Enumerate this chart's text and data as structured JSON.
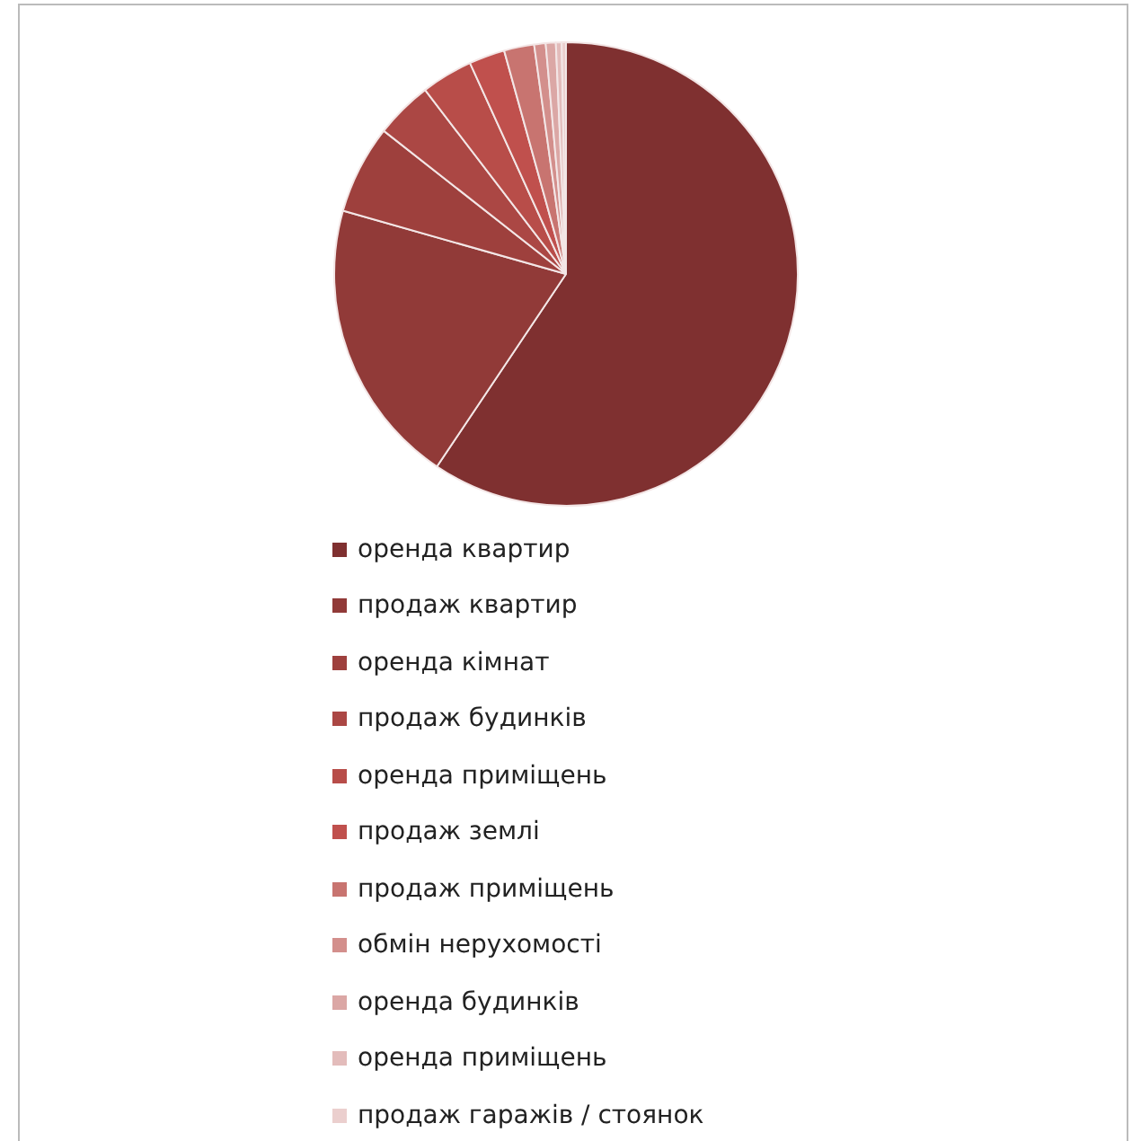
{
  "chart_data": {
    "type": "pie",
    "legend": "bottom",
    "categories": [
      "оренда квартир",
      "продаж квартир",
      "оренда кімнат",
      "продаж будинків",
      "оренда приміщень",
      "продаж землі",
      "продаж приміщень",
      "обмін нерухомості",
      "оренда будинків",
      "оренда приміщень",
      "продаж гаражів / стоянок"
    ],
    "values": [
      59.4,
      20,
      6.2,
      4,
      3.6,
      2.5,
      2.1,
      0.8,
      0.7,
      0.4,
      0.3
    ],
    "colors": [
      "#7f3030",
      "#913a38",
      "#9e403d",
      "#ab4744",
      "#b84d49",
      "#c0504d",
      "#c87470",
      "#d38f8c",
      "#dba7a5",
      "#e3bcbb",
      "#ebcfce"
    ]
  }
}
